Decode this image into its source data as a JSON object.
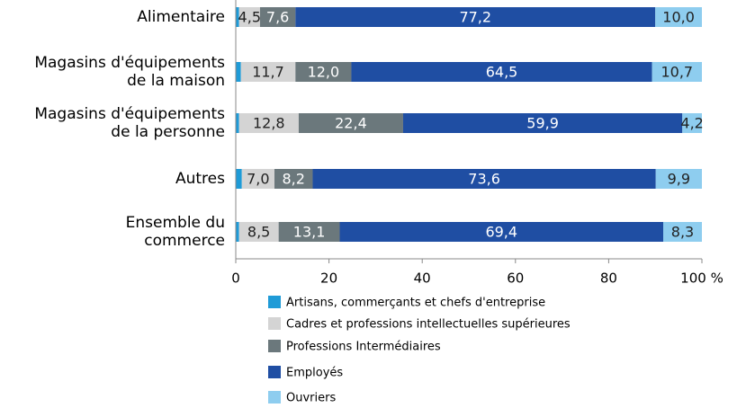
{
  "chart_data": {
    "type": "stacked-bar-horizontal",
    "categories": [
      "Alimentaire",
      "Magasins d'équipements\nde la maison",
      "Magasins d'équipements\nde la personne",
      "Autres",
      "Ensemble du\ncommerce"
    ],
    "series": [
      {
        "name": "Artisans, commerçants et chefs d'entreprise",
        "color": "#1f9bd7",
        "values": [
          0.7,
          1.1,
          0.7,
          1.3,
          0.7
        ]
      },
      {
        "name": "Cadres et professions intellectuelles supérieures",
        "color": "#d4d4d4",
        "values": [
          4.5,
          11.7,
          12.8,
          7.0,
          8.5
        ],
        "value_labels": [
          "4,5",
          "11,7",
          "12,8",
          "7,0",
          "8,5"
        ]
      },
      {
        "name": "Professions Intermédiaires",
        "color": "#6b787c",
        "values": [
          7.6,
          12.0,
          22.4,
          8.2,
          13.1
        ],
        "value_labels": [
          "7,6",
          "12,0",
          "22,4",
          "8,2",
          "13,1"
        ]
      },
      {
        "name": "Employés",
        "color": "#1f4ea3",
        "values": [
          77.2,
          64.5,
          59.9,
          73.6,
          69.4
        ],
        "value_labels": [
          "77,2",
          "64,5",
          "59,9",
          "73,6",
          "69,4"
        ]
      },
      {
        "name": "Ouvriers",
        "color": "#8ecdef",
        "values": [
          10.0,
          10.7,
          4.2,
          9.9,
          8.3
        ],
        "value_labels": [
          "10,0",
          "10,7",
          "4,2",
          "9,9",
          "8,3"
        ]
      }
    ],
    "xlim": [
      0,
      100
    ],
    "xticks": [
      0,
      20,
      40,
      60,
      80,
      {
        "value": 100,
        "label": "100 %"
      }
    ]
  }
}
